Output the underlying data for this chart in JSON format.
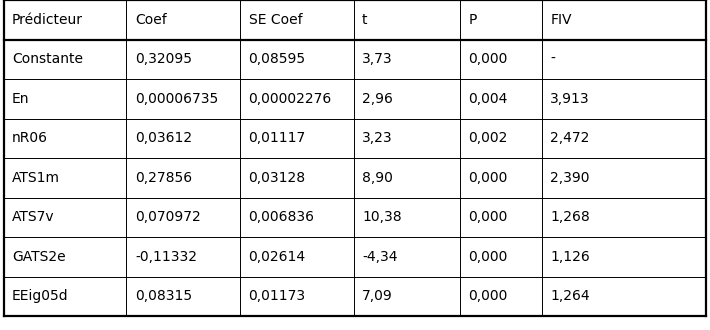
{
  "columns": [
    "Prédicteur",
    "Coef",
    "SE Coef",
    "t",
    "P",
    "FIV"
  ],
  "rows": [
    [
      "Constante",
      "0,32095",
      "0,08595",
      "3,73",
      "0,000",
      "-"
    ],
    [
      "En",
      "0,00006735",
      "0,00002276",
      "2,96",
      "0,004",
      "3,913"
    ],
    [
      "nR06",
      "0,03612",
      "0,01117",
      "3,23",
      "0,002",
      "2,472"
    ],
    [
      "ATS1m",
      "0,27856",
      "0,03128",
      "8,90",
      "0,000",
      "2,390"
    ],
    [
      "ATS7v",
      "0,070972",
      "0,006836",
      "10,38",
      "0,000",
      "1,268"
    ],
    [
      "GATS2e",
      "-0,11332",
      "0,02614",
      "-4,34",
      "0,000",
      "1,126"
    ],
    [
      "EEig05d",
      "0,08315",
      "0,01173",
      "7,09",
      "0,000",
      "1,264"
    ]
  ],
  "col_positions": [
    0.005,
    0.178,
    0.338,
    0.498,
    0.648,
    0.763
  ],
  "header_bg": "#ffffff",
  "row_bg": "#ffffff",
  "text_color": "#000000",
  "border_color": "#000000",
  "font_size": 10.0,
  "lw_thick": 1.6,
  "lw_thin": 0.7,
  "x_min": 0.005,
  "x_max": 0.995
}
